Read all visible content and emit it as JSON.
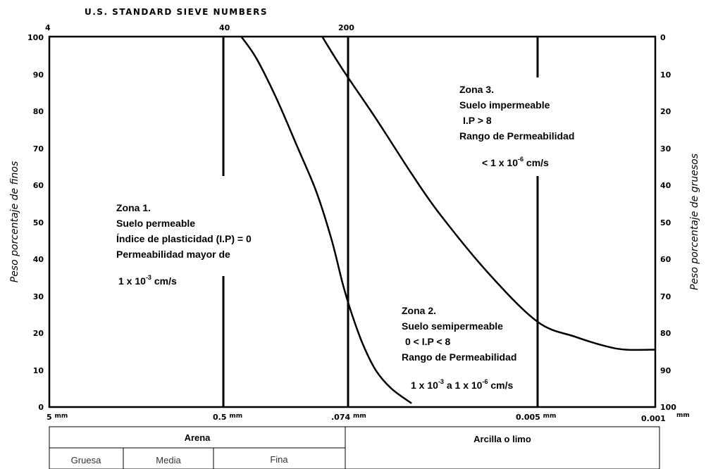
{
  "chart_data": {
    "type": "line",
    "title": "U.S. STANDARD SIEVE NUMBERS",
    "sieve_numbers": [
      "4",
      "40",
      "200"
    ],
    "ylabel_left": "Peso  porcentaje de finos",
    "ylabel_right": "Peso porcentaje de gruesos",
    "yticks_left": [
      "100",
      "90",
      "80",
      "70",
      "60",
      "50",
      "40",
      "30",
      "20",
      "10",
      "0"
    ],
    "yticks_right": [
      "0",
      "10",
      "20",
      "30",
      "40",
      "50",
      "60",
      "70",
      "80",
      "90",
      "100"
    ],
    "ylim": [
      0,
      100
    ],
    "xlim": [
      5,
      0.001
    ],
    "x_scale": "log-reversed",
    "xticks": [
      {
        "value": 5,
        "label": "5",
        "unit": "mm"
      },
      {
        "value": 0.5,
        "label": "0.5",
        "unit": "mm"
      },
      {
        "value": 0.074,
        "label": ".074",
        "unit": "mm"
      },
      {
        "value": 0.005,
        "label": "0.005",
        "unit": "mm"
      },
      {
        "value": 0.001,
        "label": "0.001",
        "unit": "mm"
      }
    ],
    "series": [
      {
        "x": [
          0.38,
          0.3,
          0.22,
          0.16,
          0.12,
          0.095,
          0.08,
          0.07,
          0.06,
          0.05,
          0.04,
          0.03
        ],
        "y": [
          100,
          94,
          83,
          70,
          58,
          45,
          33,
          25,
          17,
          10,
          5,
          1
        ]
      },
      {
        "x": [
          0.11,
          0.08,
          0.05,
          0.03,
          0.02,
          0.01,
          0.005,
          0.003,
          0.002,
          0.0015,
          0.001
        ],
        "y": [
          100,
          91,
          78,
          63,
          52,
          36,
          23,
          19,
          16.5,
          15.5,
          15.5
        ]
      }
    ],
    "annotations": {
      "zona1": [
        "Zona 1.",
        "Suelo permeable",
        "Índice de plasticidad (I.P) = 0",
        "Permeabilidad mayor de",
        "1 x 10",
        "-3",
        " cm/s"
      ],
      "zona2": [
        "Zona 2.",
        "Suelo semipermeable",
        "0 < I.P < 8",
        "Rango de Permeabilidad",
        "1 x 10",
        "-3",
        " a 1 x 10",
        "-6",
        " cm/s"
      ],
      "zona3": [
        "Zona 3.",
        "Suelo impermeable",
        "I.P > 8",
        "Rango de Permeabilidad",
        "< 1 x 10",
        "-6",
        " cm/s"
      ]
    },
    "grid": "vertical lines at sieve sizes",
    "legend": "none"
  },
  "table": {
    "arena": "Arena",
    "gruesa": "Gruesa",
    "media": "Media",
    "fina": "Fina",
    "arcilla": "Arcilla o limo"
  }
}
